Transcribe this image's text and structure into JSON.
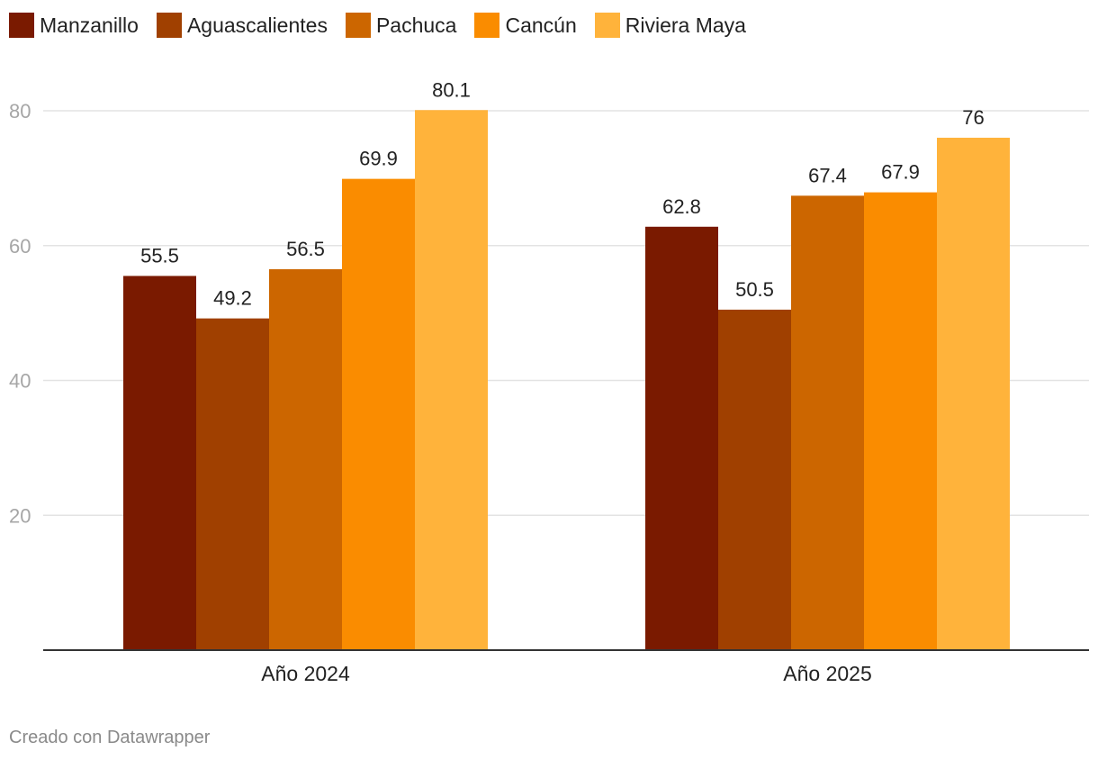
{
  "chart_data": {
    "type": "bar",
    "categories": [
      "Año 2024",
      "Año 2025"
    ],
    "series": [
      {
        "name": "Manzanillo",
        "color": "#7a1a00",
        "values": [
          55.5,
          62.8
        ]
      },
      {
        "name": "Aguascalientes",
        "color": "#a04000",
        "values": [
          49.2,
          50.5
        ]
      },
      {
        "name": "Pachuca",
        "color": "#cc6600",
        "values": [
          56.5,
          67.4
        ]
      },
      {
        "name": "Cancún",
        "color": "#fa8c00",
        "values": [
          69.9,
          67.9
        ]
      },
      {
        "name": "Riviera Maya",
        "color": "#ffb33b",
        "values": [
          80.1,
          76
        ]
      }
    ],
    "value_labels": [
      [
        "55.5",
        "62.8"
      ],
      [
        "49.2",
        "50.5"
      ],
      [
        "56.5",
        "67.4"
      ],
      [
        "69.9",
        "67.9"
      ],
      [
        "80.1",
        "76"
      ]
    ],
    "yticks": [
      20,
      40,
      60,
      80
    ],
    "ylim": [
      0,
      80
    ],
    "grid": true,
    "legend": "top-left",
    "title": "",
    "xlabel": "",
    "ylabel": ""
  },
  "footer": {
    "credit": "Creado con Datawrapper"
  }
}
